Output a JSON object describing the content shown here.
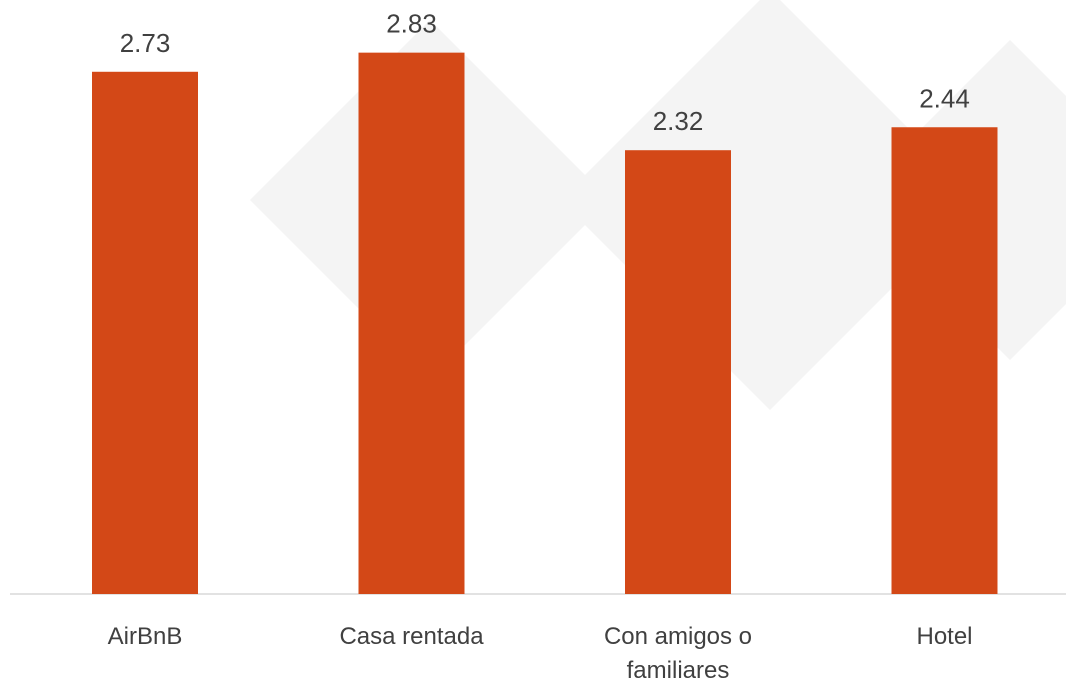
{
  "chart_data": {
    "type": "bar",
    "categories": [
      "AirBnB",
      "Casa rentada",
      "Con amigos o familiares",
      "Hotel"
    ],
    "values": [
      2.73,
      2.83,
      2.32,
      2.44
    ],
    "color": "#d34817",
    "ylim": [
      0,
      3.1
    ]
  }
}
